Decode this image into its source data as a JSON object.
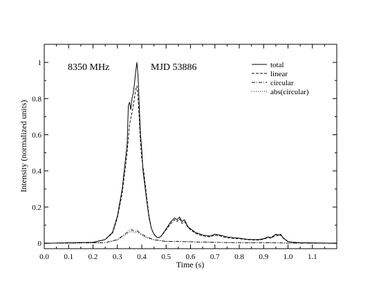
{
  "chart_data": {
    "type": "line",
    "title": "",
    "xlabel": "Time (s)",
    "ylabel": "Intensity (normalized units)",
    "xlim": [
      0.0,
      1.2
    ],
    "ylim": [
      -0.03,
      1.1
    ],
    "xticks": [
      0.0,
      0.1,
      0.2,
      0.3,
      0.4,
      0.5,
      0.6,
      0.7,
      0.8,
      0.9,
      1.0,
      1.1
    ],
    "xtick_labels": [
      "0.0",
      "0.1",
      "0.2",
      "0.3",
      "0.4",
      "0.5",
      "0.6",
      "0.7",
      "0.8",
      "0.9",
      "1.0",
      "1.1"
    ],
    "yticks": [
      0,
      0.2,
      0.4,
      0.6,
      0.8,
      1.0
    ],
    "ytick_labels": [
      "0",
      "0.2",
      "0.4",
      "0.6",
      "0.8",
      "1"
    ],
    "grid": false,
    "legend_position": "top-right",
    "annotations": [
      "8350 MHz",
      "MJD 53886"
    ],
    "series": [
      {
        "name": "total",
        "style": "solid",
        "x": [
          0.0,
          0.2,
          0.25,
          0.28,
          0.3,
          0.32,
          0.34,
          0.345,
          0.35,
          0.355,
          0.36,
          0.365,
          0.37,
          0.375,
          0.38,
          0.385,
          0.39,
          0.395,
          0.4,
          0.405,
          0.41,
          0.42,
          0.43,
          0.44,
          0.45,
          0.46,
          0.47,
          0.48,
          0.5,
          0.52,
          0.535,
          0.545,
          0.555,
          0.565,
          0.575,
          0.59,
          0.62,
          0.65,
          0.68,
          0.7,
          0.72,
          0.75,
          0.78,
          0.8,
          0.83,
          0.86,
          0.88,
          0.9,
          0.92,
          0.93,
          0.94,
          0.95,
          0.96,
          0.97,
          0.98,
          1.0,
          1.02,
          1.05,
          1.1,
          1.2
        ],
        "y": [
          0.0,
          0.005,
          0.02,
          0.06,
          0.15,
          0.3,
          0.55,
          0.76,
          0.78,
          0.74,
          0.8,
          0.83,
          0.88,
          0.95,
          1.0,
          0.92,
          0.75,
          0.6,
          0.52,
          0.4,
          0.35,
          0.24,
          0.14,
          0.08,
          0.05,
          0.035,
          0.03,
          0.04,
          0.08,
          0.12,
          0.14,
          0.13,
          0.145,
          0.12,
          0.13,
          0.09,
          0.06,
          0.045,
          0.04,
          0.05,
          0.045,
          0.035,
          0.03,
          0.028,
          0.022,
          0.02,
          0.02,
          0.025,
          0.035,
          0.03,
          0.04,
          0.05,
          0.045,
          0.05,
          0.03,
          0.01,
          0.005,
          0.003,
          0.002,
          0.0
        ]
      },
      {
        "name": "linear",
        "style": "dashed",
        "x": [
          0.0,
          0.2,
          0.25,
          0.28,
          0.3,
          0.32,
          0.34,
          0.35,
          0.36,
          0.37,
          0.375,
          0.38,
          0.385,
          0.39,
          0.395,
          0.4,
          0.405,
          0.41,
          0.42,
          0.43,
          0.44,
          0.45,
          0.46,
          0.47,
          0.48,
          0.5,
          0.52,
          0.535,
          0.545,
          0.555,
          0.565,
          0.575,
          0.59,
          0.62,
          0.65,
          0.68,
          0.7,
          0.72,
          0.75,
          0.78,
          0.8,
          0.83,
          0.86,
          0.88,
          0.9,
          0.92,
          0.93,
          0.94,
          0.95,
          0.96,
          0.97,
          0.98,
          1.0,
          1.05,
          1.2
        ],
        "y": [
          0.0,
          0.005,
          0.02,
          0.055,
          0.14,
          0.28,
          0.5,
          0.66,
          0.72,
          0.8,
          0.85,
          0.87,
          0.8,
          0.68,
          0.55,
          0.47,
          0.42,
          0.38,
          0.26,
          0.15,
          0.08,
          0.05,
          0.035,
          0.03,
          0.04,
          0.075,
          0.11,
          0.13,
          0.12,
          0.135,
          0.11,
          0.12,
          0.085,
          0.055,
          0.04,
          0.035,
          0.045,
          0.04,
          0.03,
          0.025,
          0.025,
          0.02,
          0.018,
          0.018,
          0.022,
          0.032,
          0.028,
          0.036,
          0.045,
          0.04,
          0.045,
          0.028,
          0.008,
          0.003,
          0.0
        ]
      },
      {
        "name": "circular",
        "style": "dashdot",
        "x": [
          0.0,
          0.25,
          0.3,
          0.33,
          0.35,
          0.36,
          0.37,
          0.38,
          0.39,
          0.4,
          0.42,
          0.45,
          0.5,
          0.55,
          0.6,
          0.7,
          0.8,
          0.9,
          1.0,
          1.2
        ],
        "y": [
          0.0,
          0.003,
          0.02,
          0.05,
          0.07,
          0.075,
          0.065,
          0.07,
          0.06,
          0.05,
          0.035,
          0.02,
          0.01,
          0.01,
          0.008,
          0.005,
          0.003,
          0.003,
          0.001,
          0.0
        ]
      },
      {
        "name": "abs(circular)",
        "style": "dotted",
        "x": [
          0.0,
          0.25,
          0.3,
          0.33,
          0.35,
          0.36,
          0.37,
          0.38,
          0.39,
          0.4,
          0.42,
          0.45,
          0.5,
          0.55,
          0.6,
          0.7,
          0.8,
          0.9,
          1.0,
          1.2
        ],
        "y": [
          0.0,
          0.003,
          0.018,
          0.045,
          0.06,
          0.065,
          0.058,
          0.062,
          0.055,
          0.045,
          0.03,
          0.018,
          0.01,
          0.01,
          0.008,
          0.005,
          0.003,
          0.003,
          0.001,
          0.0
        ]
      }
    ]
  }
}
